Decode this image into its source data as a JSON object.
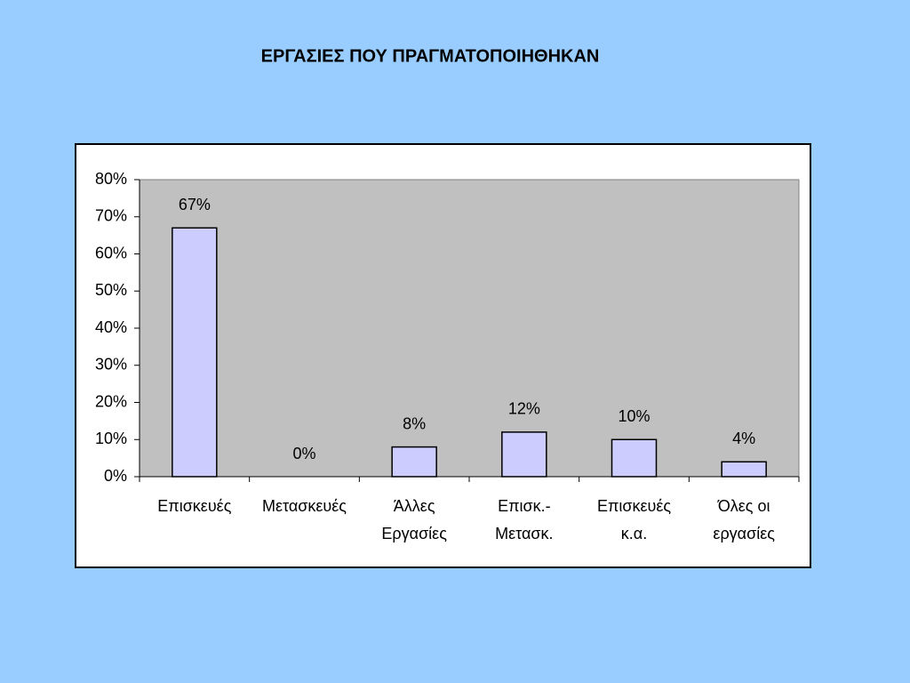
{
  "chart_data": {
    "type": "bar",
    "title": "ΕΡΓΑΣΙΕΣ ΠΟΥ ΠΡΑΓΜΑΤΟΠΟΙΗΘΗΚΑΝ",
    "categories": [
      [
        "Επισκευές"
      ],
      [
        "Μετασκευές"
      ],
      [
        "Άλλες",
        "Εργασίες"
      ],
      [
        "Επισκ.-",
        "Μετασκ."
      ],
      [
        "Επισκευές",
        "κ.α."
      ],
      [
        "Όλες οι",
        "εργασίες"
      ]
    ],
    "values": [
      67,
      0,
      8,
      12,
      10,
      4
    ],
    "value_labels": [
      "67%",
      "0%",
      "8%",
      "12%",
      "10%",
      "4%"
    ],
    "color": "#ccccff",
    "ylim": [
      0,
      80
    ],
    "yticks": [
      {
        "value": 0,
        "label": "0%"
      },
      {
        "value": 10,
        "label": "10%"
      },
      {
        "value": 20,
        "label": "20%"
      },
      {
        "value": 30,
        "label": "30%"
      },
      {
        "value": 40,
        "label": "40%"
      },
      {
        "value": 50,
        "label": "50%"
      },
      {
        "value": 60,
        "label": "60%"
      },
      {
        "value": 70,
        "label": "70%"
      },
      {
        "value": 80,
        "label": "80%"
      }
    ],
    "grid": false
  }
}
